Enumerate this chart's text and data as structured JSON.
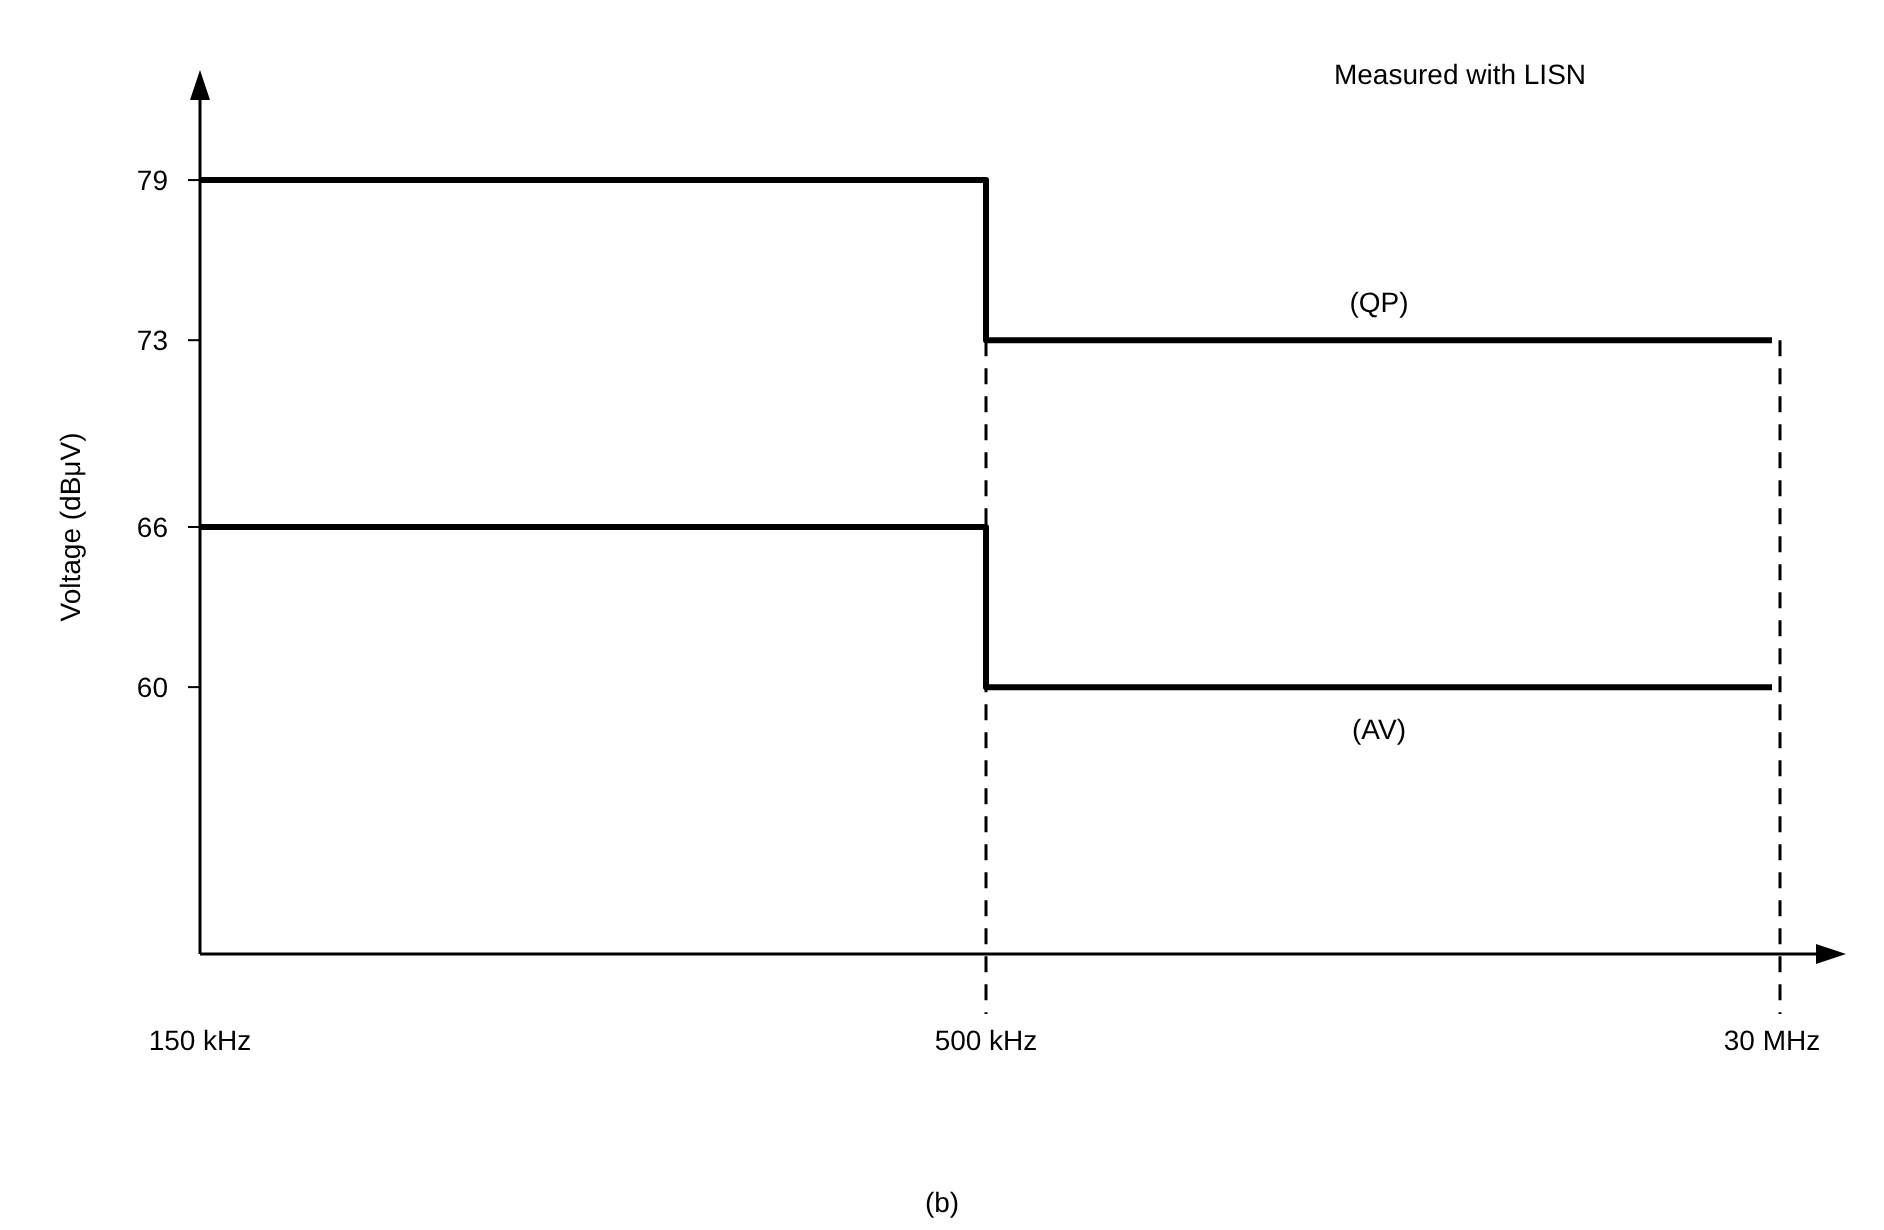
{
  "chart_data": {
    "type": "step",
    "ylabel": "Voltage (dBμV)",
    "categories": [
      "150 kHz",
      "500 kHz",
      "30 MHz"
    ],
    "ylim": [
      50,
      82
    ],
    "yticks": [
      60,
      66,
      73,
      79
    ],
    "series": [
      {
        "name": "(QP)",
        "color": "#000000",
        "values": [
          79,
          73,
          73
        ]
      },
      {
        "name": "(AV)",
        "color": "#000000",
        "values": [
          66,
          60,
          60
        ]
      }
    ],
    "ref_lines": [
      {
        "axis": "x",
        "value": "500 kHz",
        "line_style": "dashed",
        "color": "#000000"
      },
      {
        "axis": "x",
        "value": "30 MHz",
        "line_style": "dashed",
        "color": "#000000"
      }
    ],
    "annotations": [
      "Measured with LISN",
      "(b)"
    ],
    "grid": false,
    "marker": "none",
    "line_style": "solid"
  }
}
